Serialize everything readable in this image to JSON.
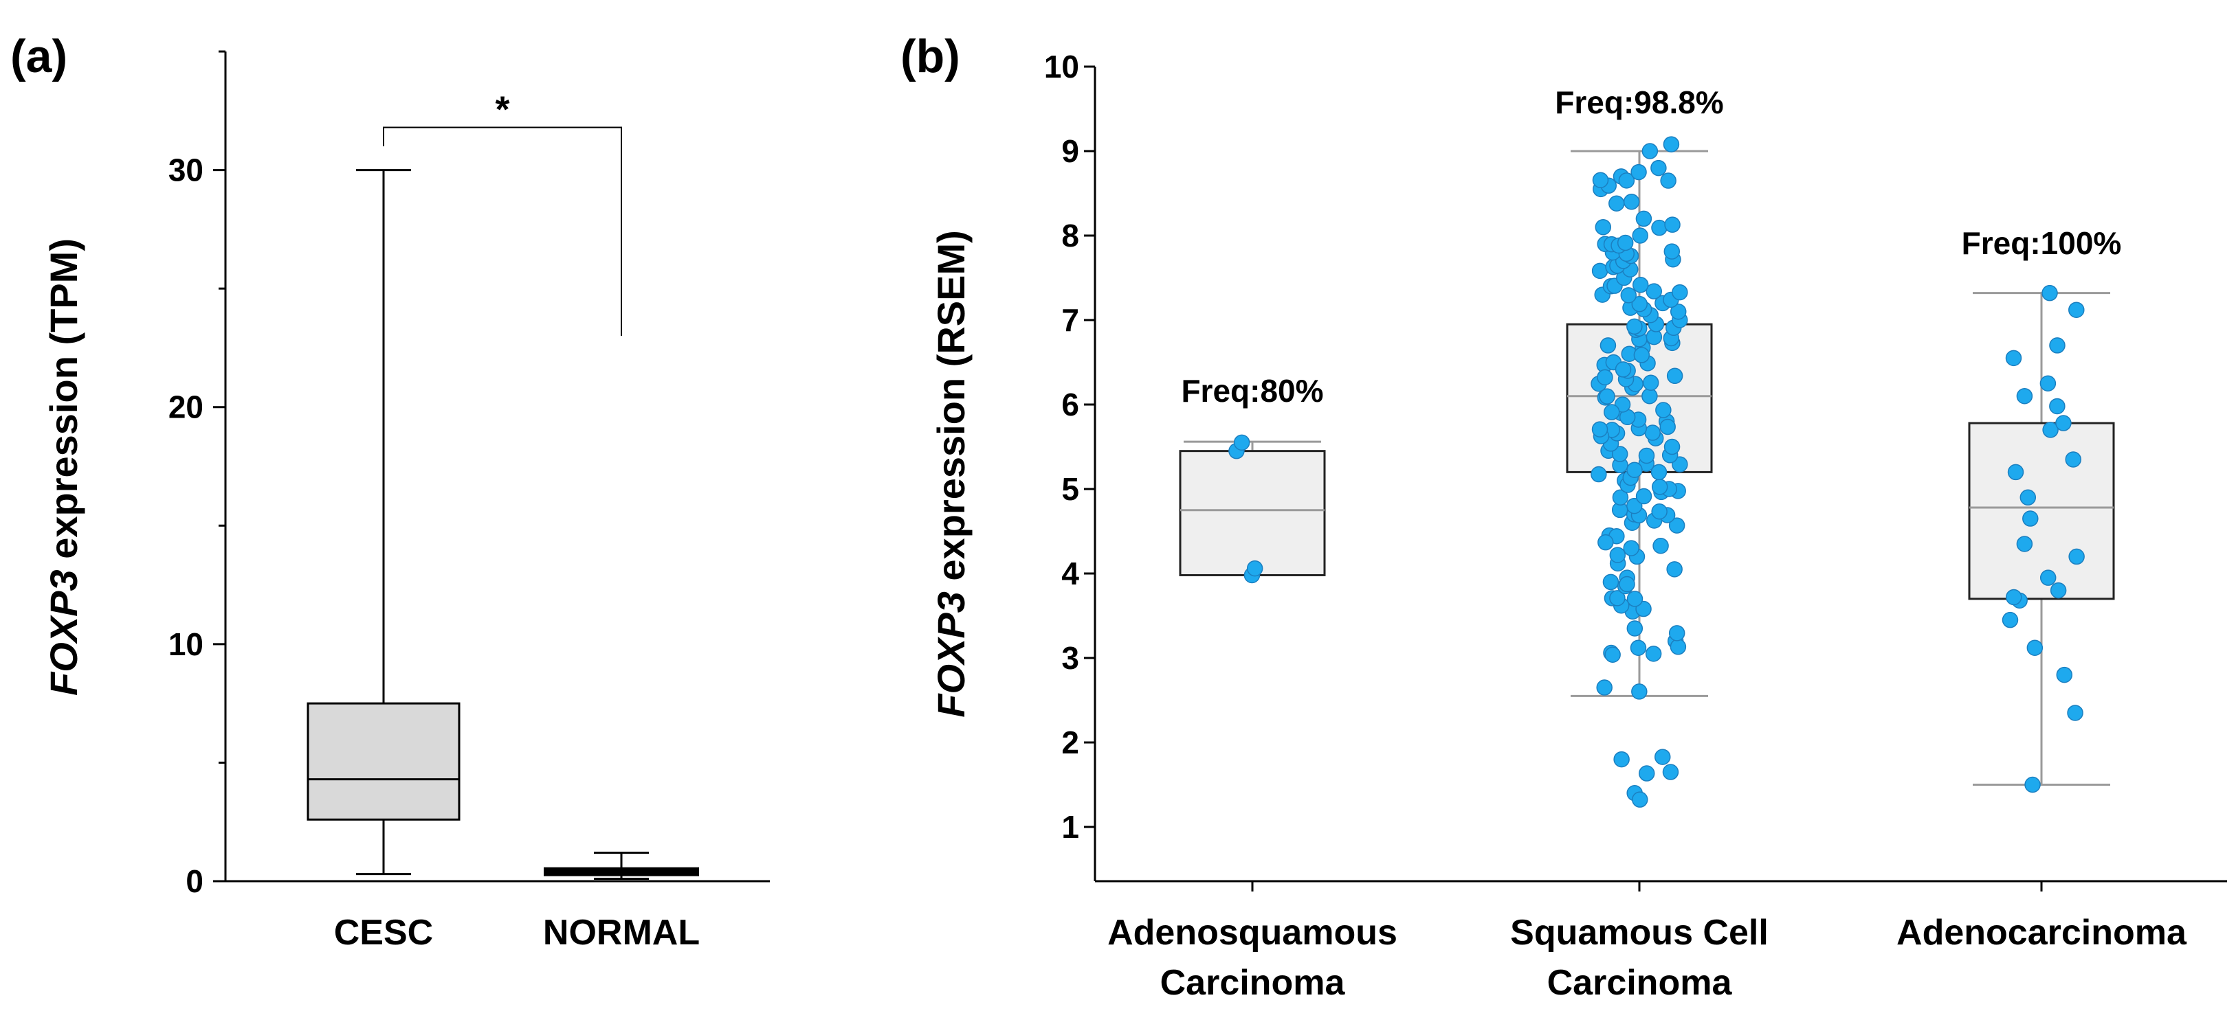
{
  "chart_data": [
    {
      "panel": "(a)",
      "type": "box",
      "ylabel_italic": "FOXP3",
      "ylabel_rest": " expression (TPM)",
      "ylim": [
        0,
        35
      ],
      "yticks": [
        0,
        10,
        20,
        30
      ],
      "categories": [
        "CESC",
        "NORMAL"
      ],
      "boxes": [
        {
          "category": "CESC",
          "min": 0.3,
          "q1": 2.6,
          "median": 4.3,
          "q3": 7.5,
          "max": 30.0,
          "fill": "#d9d9d9"
        },
        {
          "category": "NORMAL",
          "min": 0.1,
          "q1": 0.3,
          "median": 0.4,
          "q3": 0.5,
          "max": 1.2,
          "fill": "#d9d9d9"
        }
      ],
      "significance": {
        "label": "*",
        "from": "CESC",
        "to": "NORMAL",
        "y": 31.8,
        "left_drop": 31.0,
        "right_drop": 23.0
      }
    },
    {
      "panel": "(b)",
      "type": "box+scatter",
      "ylabel_italic": "FOXP3",
      "ylabel_rest": " expression (RSEM)",
      "ylim": [
        0.4,
        10
      ],
      "yticks": [
        1,
        2,
        3,
        4,
        5,
        6,
        7,
        8,
        9,
        10
      ],
      "point_color": "#1ea9ee",
      "point_edge": "#1b7fc0",
      "categories": [
        {
          "line1": "Adenosquamous",
          "line2": "Carcinoma"
        },
        {
          "line1": "Squamous Cell",
          "line2": "Carcinoma"
        },
        {
          "line1": "Adenocarcinoma",
          "line2": ""
        }
      ],
      "freq_labels": [
        "Freq:80%",
        "Freq:98.8%",
        "Freq:100%"
      ],
      "boxes": [
        {
          "min": 3.98,
          "q1": 3.98,
          "median": 4.75,
          "q3": 5.45,
          "max": 5.56
        },
        {
          "min": 2.55,
          "q1": 5.2,
          "median": 6.1,
          "q3": 6.95,
          "max": 9.0
        },
        {
          "min": 1.5,
          "q1": 3.7,
          "median": 4.78,
          "q3": 5.78,
          "max": 7.32
        }
      ],
      "points": [
        [
          3.98,
          4.06,
          5.45,
          5.55
        ],
        [
          1.4,
          1.65,
          1.8,
          2.65,
          3.05,
          3.12,
          3.2,
          3.35,
          3.55,
          3.62,
          3.7,
          3.85,
          3.95,
          4.05,
          4.2,
          4.3,
          4.45,
          4.6,
          4.7,
          4.8,
          4.9,
          5.0,
          5.1,
          5.2,
          5.3,
          5.4,
          5.5,
          5.6,
          5.7,
          5.8,
          5.9,
          6.0,
          6.1,
          6.2,
          6.3,
          6.4,
          6.5,
          6.6,
          6.7,
          6.8,
          6.9,
          7.0,
          7.1,
          7.2,
          7.3,
          7.4,
          7.5,
          7.6,
          7.7,
          7.8,
          7.9,
          8.0,
          8.1,
          8.2,
          8.4,
          8.55,
          8.65,
          8.7,
          8.8,
          9.0
        ],
        [
          1.5,
          2.35,
          2.8,
          3.12,
          3.45,
          3.68,
          3.72,
          3.8,
          3.95,
          4.2,
          4.35,
          4.65,
          4.9,
          5.2,
          5.35,
          5.7,
          5.78,
          5.98,
          6.1,
          6.25,
          6.55,
          6.7,
          7.12,
          7.32
        ]
      ]
    }
  ]
}
